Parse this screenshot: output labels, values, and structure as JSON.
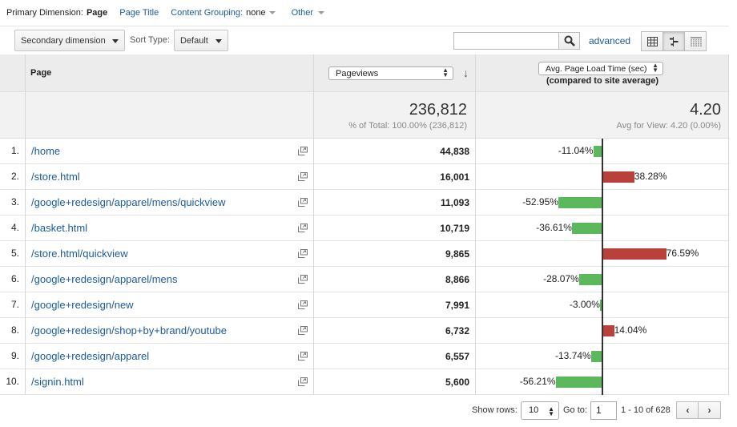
{
  "dimension_bar": {
    "primary_label": "Primary Dimension:",
    "active": "Page",
    "page_title": "Page Title",
    "content_grouping_label": "Content Grouping:",
    "content_grouping_value": "none",
    "other": "Other"
  },
  "toolbar": {
    "secondary_dimension": "Secondary dimension",
    "sort_type_label": "Sort Type:",
    "sort_type_value": "Default",
    "search_value": "",
    "advanced": "advanced"
  },
  "table": {
    "header": {
      "page": "Page",
      "metric": "Pageviews",
      "compare_metric": "Avg. Page Load Time (sec)",
      "compare_note": "(compared to site average)"
    },
    "summary": {
      "pageviews": "236,812",
      "pageviews_sub": "% of Total: 100.00% (236,812)",
      "load_time": "4.20",
      "load_time_sub": "Avg for View: 4.20 (0.00%)"
    },
    "rows": [
      {
        "num": "1.",
        "page": "/home",
        "pageviews": "44,838",
        "pct": -11.04,
        "pct_label": "-11.04%"
      },
      {
        "num": "2.",
        "page": "/store.html",
        "pageviews": "16,001",
        "pct": 38.28,
        "pct_label": "38.28%"
      },
      {
        "num": "3.",
        "page": "/google+redesign/apparel/mens/quickview",
        "pageviews": "11,093",
        "pct": -52.95,
        "pct_label": "-52.95%"
      },
      {
        "num": "4.",
        "page": "/basket.html",
        "pageviews": "10,719",
        "pct": -36.61,
        "pct_label": "-36.61%"
      },
      {
        "num": "5.",
        "page": "/store.html/quickview",
        "pageviews": "9,865",
        "pct": 76.59,
        "pct_label": "76.59%"
      },
      {
        "num": "6.",
        "page": "/google+redesign/apparel/mens",
        "pageviews": "8,866",
        "pct": -28.07,
        "pct_label": "-28.07%"
      },
      {
        "num": "7.",
        "page": "/google+redesign/new",
        "pageviews": "7,991",
        "pct": -3.0,
        "pct_label": "-3.00%"
      },
      {
        "num": "8.",
        "page": "/google+redesign/shop+by+brand/youtube",
        "pageviews": "6,732",
        "pct": 14.04,
        "pct_label": "14.04%"
      },
      {
        "num": "9.",
        "page": "/google+redesign/apparel",
        "pageviews": "6,557",
        "pct": -13.74,
        "pct_label": "-13.74%"
      },
      {
        "num": "10.",
        "page": "/signin.html",
        "pageviews": "5,600",
        "pct": -56.21,
        "pct_label": "-56.21%"
      }
    ]
  },
  "footer": {
    "show_rows_label": "Show rows:",
    "show_rows_value": "10",
    "goto_label": "Go to:",
    "goto_value": "1",
    "range": "1 - 10 of 628",
    "prev": "‹",
    "next": "›"
  },
  "colors": {
    "link": "#1a5b9c",
    "negative_bar": "#5cb85c",
    "positive_bar": "#b9403b"
  }
}
